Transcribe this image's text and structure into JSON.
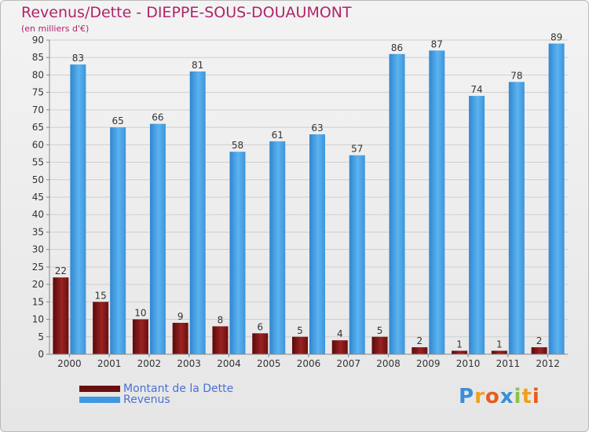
{
  "chart_data": {
    "type": "bar",
    "title": "Revenus/Dette - DIEPPE-SOUS-DOUAUMONT",
    "subtitle": "(en milliers d'€)",
    "categories": [
      "2000",
      "2001",
      "2002",
      "2003",
      "2004",
      "2005",
      "2006",
      "2007",
      "2008",
      "2009",
      "2010",
      "2011",
      "2012"
    ],
    "series": [
      {
        "name": "Montant de la Dette",
        "color": "#8b1a1a",
        "values": [
          22,
          15,
          10,
          9,
          8,
          6,
          5,
          4,
          5,
          2,
          1,
          1,
          2
        ]
      },
      {
        "name": "Revenus",
        "color": "#4da6e8",
        "values": [
          83,
          65,
          66,
          81,
          58,
          61,
          63,
          57,
          86,
          87,
          74,
          78,
          89
        ]
      }
    ],
    "ylim": [
      0,
      90
    ],
    "yticks": [
      0,
      5,
      10,
      15,
      20,
      25,
      30,
      35,
      40,
      45,
      50,
      55,
      60,
      65,
      70,
      75,
      80,
      85,
      90
    ],
    "grid": true,
    "legend_position": "bottom-left"
  },
  "legend": {
    "debt_label": "Montant de la Dette",
    "revenue_label": "Revenus"
  },
  "logo": {
    "text": "Proxiti",
    "letters": [
      "P",
      "r",
      "o",
      "x",
      "i",
      "t",
      "i"
    ],
    "colors": [
      "#3a8fd8",
      "#f0a020",
      "#e65c1e",
      "#3a8fd8",
      "#8bc34a",
      "#f0a020",
      "#e65c1e"
    ]
  }
}
